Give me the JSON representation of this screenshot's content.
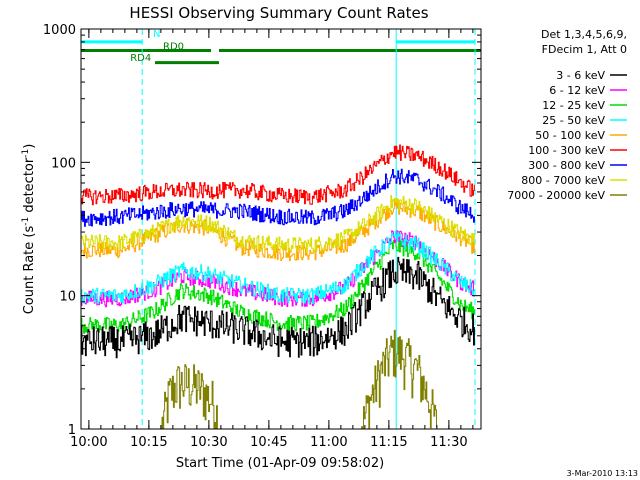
{
  "chart_data": {
    "type": "line",
    "title": "HESSI Observing Summary Count Rates",
    "xlabel": "Start Time (01-Apr-09 09:58:02)",
    "ylabel": "Count Rate (s⁻¹ detector⁻¹)",
    "ylabel_parts": [
      "Count Rate (s",
      "-1",
      " detector",
      "-1",
      ")"
    ],
    "y_scale": "log",
    "ylim": [
      1,
      1000
    ],
    "y_ticks": [
      1,
      10,
      100,
      1000
    ],
    "y_tick_labels": [
      "1",
      "10",
      "100",
      "1000"
    ],
    "x_unit": "minutes after 09:58:02",
    "xlim": [
      0,
      100
    ],
    "x_ticks": [
      1.97,
      16.97,
      31.97,
      46.97,
      61.97,
      76.97,
      91.97
    ],
    "x_tick_labels": [
      "10:00",
      "10:15",
      "10:30",
      "10:45",
      "11:00",
      "11:15",
      "11:30"
    ],
    "legend_header": [
      "Det 1,3,4,5,6,9,",
      "FDecim 1, Att 0"
    ],
    "legend_placement": "right, outside plot",
    "series": [
      {
        "name": "3 - 6 keV",
        "color": "#000000",
        "x": [
          0,
          10,
          18,
          25,
          32,
          40,
          50,
          58,
          66,
          72,
          78,
          84,
          90,
          95,
          98.5
        ],
        "y": [
          4.5,
          4.5,
          5.0,
          6.8,
          6.2,
          5.5,
          4.5,
          4.5,
          5.5,
          9.5,
          15.0,
          14.0,
          9.0,
          6.5,
          5.5
        ]
      },
      {
        "name": "6 - 12 keV",
        "color": "#ff00ff",
        "x": [
          0,
          10,
          18,
          25,
          32,
          40,
          50,
          58,
          66,
          72,
          78,
          84,
          90,
          95,
          98.5
        ],
        "y": [
          9.5,
          9.5,
          11.0,
          14.0,
          13.0,
          11.0,
          9.5,
          9.5,
          11.5,
          18.0,
          28.0,
          25.0,
          17.0,
          12.5,
          11.0
        ]
      },
      {
        "name": "12 - 25 keV",
        "color": "#00dd00",
        "x": [
          0,
          10,
          18,
          25,
          32,
          40,
          50,
          58,
          66,
          72,
          78,
          84,
          90,
          95,
          98.5
        ],
        "y": [
          6.0,
          6.0,
          7.5,
          11.0,
          10.0,
          7.5,
          6.2,
          6.2,
          8.0,
          14.0,
          24.0,
          21.0,
          13.0,
          8.5,
          7.5
        ]
      },
      {
        "name": "25 - 50 keV",
        "color": "#00ffff",
        "x": [
          0,
          10,
          18,
          25,
          32,
          40,
          50,
          58,
          66,
          72,
          78,
          84,
          90,
          95,
          98.5
        ],
        "y": [
          10.0,
          10.0,
          12.0,
          15.5,
          14.5,
          12.0,
          10.0,
          10.0,
          12.0,
          19.0,
          27.0,
          24.0,
          17.0,
          12.5,
          11.0
        ]
      },
      {
        "name": "50 - 100 keV",
        "color": "#ffaa00",
        "x": [
          0,
          10,
          18,
          25,
          32,
          40,
          50,
          58,
          66,
          72,
          78,
          84,
          90,
          95,
          98.5
        ],
        "y": [
          22.0,
          22.0,
          28.0,
          34.0,
          32.0,
          23.0,
          21.0,
          21.0,
          24.0,
          33.0,
          47.0,
          43.0,
          33.0,
          27.0,
          23.0
        ]
      },
      {
        "name": "100 - 300 keV",
        "color": "#ff0000",
        "x": [
          0,
          10,
          18,
          25,
          32,
          40,
          50,
          58,
          66,
          72,
          78,
          84,
          90,
          95,
          98.5
        ],
        "y": [
          55.0,
          56.0,
          60.0,
          62.0,
          61.0,
          62.0,
          56.0,
          55.0,
          62.0,
          85.0,
          120.0,
          112.0,
          90.0,
          70.0,
          60.0
        ]
      },
      {
        "name": "300 - 800 keV",
        "color": "#0000ff",
        "x": [
          0,
          10,
          18,
          25,
          32,
          40,
          50,
          58,
          66,
          72,
          78,
          84,
          90,
          95,
          98.5
        ],
        "y": [
          38.0,
          39.0,
          42.0,
          45.0,
          44.0,
          43.0,
          39.0,
          38.0,
          43.0,
          58.0,
          80.0,
          74.0,
          58.0,
          45.0,
          40.0
        ]
      },
      {
        "name": "800 - 7000 keV",
        "color": "#dddd00",
        "x": [
          0,
          10,
          18,
          25,
          32,
          40,
          50,
          58,
          66,
          72,
          78,
          84,
          90,
          95,
          98.5
        ],
        "y": [
          25.0,
          25.0,
          30.0,
          37.0,
          35.0,
          26.0,
          24.0,
          24.0,
          27.0,
          36.0,
          51.0,
          47.0,
          36.0,
          29.0,
          26.0
        ]
      },
      {
        "name": "7000 - 20000 keV",
        "color": "#808000",
        "x": [
          0,
          20,
          22,
          24,
          27,
          30,
          33,
          35,
          70,
          72,
          75,
          78,
          81,
          84,
          87,
          89
        ],
        "y": [
          1.0,
          1.0,
          1.8,
          2.2,
          2.2,
          2.0,
          1.6,
          1.0,
          1.0,
          1.6,
          2.8,
          4.0,
          3.5,
          2.8,
          1.7,
          1.0
        ]
      }
    ],
    "vertical_lines": [
      {
        "x": 15.3,
        "color": "#00ffff",
        "style": "dashed"
      },
      {
        "x": 78.8,
        "color": "#00ffff",
        "style": "solid"
      },
      {
        "x": 98.5,
        "color": "#00ffff",
        "style": "dashed"
      }
    ],
    "status_bars": [
      {
        "x0": 0,
        "x1": 15.3,
        "y": 800,
        "color": "#00ffff"
      },
      {
        "x0": 78.8,
        "x1": 98.5,
        "y": 800,
        "color": "#00ffff"
      },
      {
        "x0": 0,
        "x1": 32.5,
        "y": 690,
        "color": "#008000"
      },
      {
        "x0": 34.5,
        "x1": 100,
        "y": 690,
        "color": "#008000"
      },
      {
        "x0": 18.5,
        "x1": 34.5,
        "y": 560,
        "color": "#008000"
      }
    ],
    "annotations": [
      {
        "text": "N",
        "x": 18.0,
        "y": 870,
        "color": "#00ffff"
      },
      {
        "text": "RD0",
        "x": 20.5,
        "y": 700,
        "color": "#008000"
      },
      {
        "text": "RD4",
        "x": 12.3,
        "y": 575,
        "color": "#008000"
      }
    ],
    "timestamp": "3-Mar-2010 13:13"
  }
}
